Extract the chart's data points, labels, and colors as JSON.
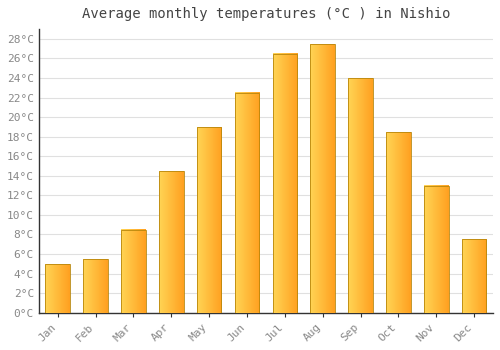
{
  "title": "Average monthly temperatures (°C ) in Nishio",
  "months": [
    "Jan",
    "Feb",
    "Mar",
    "Apr",
    "May",
    "Jun",
    "Jul",
    "Aug",
    "Sep",
    "Oct",
    "Nov",
    "Dec"
  ],
  "values": [
    5.0,
    5.5,
    8.5,
    14.5,
    19.0,
    22.5,
    26.5,
    27.5,
    24.0,
    18.5,
    13.0,
    7.5
  ],
  "bar_color_left": "#FFD555",
  "bar_color_right": "#FFA020",
  "bar_edge_color": "#B8860B",
  "ylim": [
    0,
    29
  ],
  "yticks": [
    0,
    2,
    4,
    6,
    8,
    10,
    12,
    14,
    16,
    18,
    20,
    22,
    24,
    26,
    28
  ],
  "background_color": "#ffffff",
  "plot_bg_color": "#ffffff",
  "grid_color": "#e0e0e0",
  "title_fontsize": 10,
  "tick_fontsize": 8,
  "tick_color": "#888888",
  "spine_color": "#333333"
}
